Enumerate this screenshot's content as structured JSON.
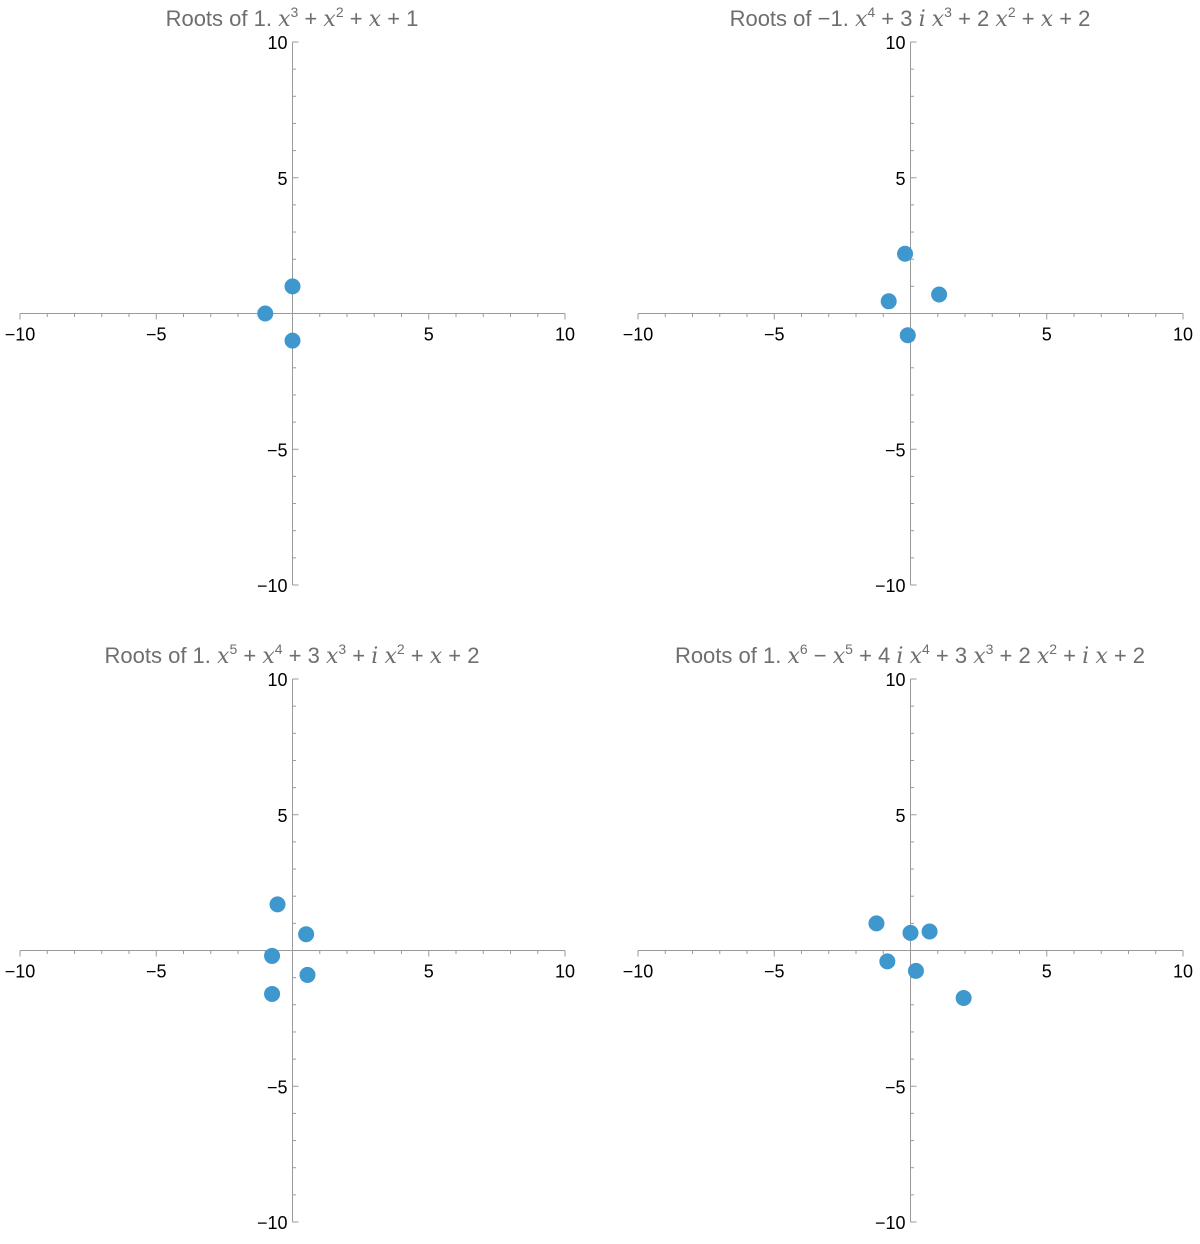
{
  "chart_data": [
    {
      "type": "scatter",
      "title": "Roots of 1. x^3 + x^2 + x + 1",
      "title_parts": [
        {
          "t": "Roots of 1. "
        },
        {
          "t": "x",
          "i": true
        },
        {
          "t": "3",
          "s": true
        },
        {
          "t": " + "
        },
        {
          "t": "x",
          "i": true
        },
        {
          "t": "2",
          "s": true
        },
        {
          "t": " + "
        },
        {
          "t": "x",
          "i": true
        },
        {
          "t": " + 1"
        }
      ],
      "xlim": [
        -10,
        10
      ],
      "ylim": [
        -10,
        10
      ],
      "x_ticks": [
        -10,
        -5,
        5,
        10
      ],
      "y_ticks": [
        -10,
        -5,
        5,
        10
      ],
      "points": [
        {
          "x": -1,
          "y": 0
        },
        {
          "x": 0,
          "y": 1
        },
        {
          "x": 0,
          "y": -1
        }
      ]
    },
    {
      "type": "scatter",
      "title": "Roots of −1. x^4 + 3 i x^3 + 2 x^2 + x + 2",
      "title_parts": [
        {
          "t": "Roots of −1. "
        },
        {
          "t": "x",
          "i": true
        },
        {
          "t": "4",
          "s": true
        },
        {
          "t": " + 3 "
        },
        {
          "t": "i",
          "i": true
        },
        {
          "t": " "
        },
        {
          "t": "x",
          "i": true
        },
        {
          "t": "3",
          "s": true
        },
        {
          "t": " + 2 "
        },
        {
          "t": "x",
          "i": true
        },
        {
          "t": "2",
          "s": true
        },
        {
          "t": " + "
        },
        {
          "t": "x",
          "i": true
        },
        {
          "t": " + 2"
        }
      ],
      "xlim": [
        -10,
        10
      ],
      "ylim": [
        -10,
        10
      ],
      "x_ticks": [
        -10,
        -5,
        5,
        10
      ],
      "y_ticks": [
        -10,
        -5,
        5,
        10
      ],
      "points": [
        {
          "x": -0.2,
          "y": 2.2
        },
        {
          "x": -0.8,
          "y": 0.45
        },
        {
          "x": 1.05,
          "y": 0.7
        },
        {
          "x": -0.1,
          "y": -0.8
        }
      ]
    },
    {
      "type": "scatter",
      "title": "Roots of 1. x^5 + x^4 + 3 x^3 + i x^2 + x + 2",
      "title_parts": [
        {
          "t": "Roots of 1. "
        },
        {
          "t": "x",
          "i": true
        },
        {
          "t": "5",
          "s": true
        },
        {
          "t": " + "
        },
        {
          "t": "x",
          "i": true
        },
        {
          "t": "4",
          "s": true
        },
        {
          "t": " + 3 "
        },
        {
          "t": "x",
          "i": true
        },
        {
          "t": "3",
          "s": true
        },
        {
          "t": " + "
        },
        {
          "t": "i",
          "i": true
        },
        {
          "t": " "
        },
        {
          "t": "x",
          "i": true
        },
        {
          "t": "2",
          "s": true
        },
        {
          "t": " + "
        },
        {
          "t": "x",
          "i": true
        },
        {
          "t": " + 2"
        }
      ],
      "xlim": [
        -10,
        10
      ],
      "ylim": [
        -10,
        10
      ],
      "x_ticks": [
        -10,
        -5,
        5,
        10
      ],
      "y_ticks": [
        -10,
        -5,
        5,
        10
      ],
      "points": [
        {
          "x": -0.55,
          "y": 1.7
        },
        {
          "x": 0.5,
          "y": 0.6
        },
        {
          "x": -0.75,
          "y": -0.2
        },
        {
          "x": 0.55,
          "y": -0.9
        },
        {
          "x": -0.75,
          "y": -1.6
        }
      ]
    },
    {
      "type": "scatter",
      "title": "Roots of 1. x^6 − x^5 + 4 i x^4 + 3 x^3 + 2 x^2 + i x + 2",
      "title_parts": [
        {
          "t": "Roots of 1. "
        },
        {
          "t": "x",
          "i": true
        },
        {
          "t": "6",
          "s": true
        },
        {
          "t": " − "
        },
        {
          "t": "x",
          "i": true
        },
        {
          "t": "5",
          "s": true
        },
        {
          "t": " + 4 "
        },
        {
          "t": "i",
          "i": true
        },
        {
          "t": " "
        },
        {
          "t": "x",
          "i": true
        },
        {
          "t": "4",
          "s": true
        },
        {
          "t": " + 3 "
        },
        {
          "t": "x",
          "i": true
        },
        {
          "t": "3",
          "s": true
        },
        {
          "t": " + 2 "
        },
        {
          "t": "x",
          "i": true
        },
        {
          "t": "2",
          "s": true
        },
        {
          "t": " + "
        },
        {
          "t": "i",
          "i": true
        },
        {
          "t": " "
        },
        {
          "t": "x",
          "i": true
        },
        {
          "t": " + 2"
        }
      ],
      "xlim": [
        -10,
        10
      ],
      "ylim": [
        -10,
        10
      ],
      "x_ticks": [
        -10,
        -5,
        5,
        10
      ],
      "y_ticks": [
        -10,
        -5,
        5,
        10
      ],
      "points": [
        {
          "x": -1.25,
          "y": 1.0
        },
        {
          "x": 0.0,
          "y": 0.65
        },
        {
          "x": 0.7,
          "y": 0.7
        },
        {
          "x": -0.85,
          "y": -0.4
        },
        {
          "x": 0.2,
          "y": -0.75
        },
        {
          "x": 1.95,
          "y": -1.75
        }
      ]
    }
  ],
  "colors": {
    "point": "#3e97cd",
    "axis": "#9a9a9a",
    "title": "#6e6e6e",
    "tick_label": "#000000"
  }
}
